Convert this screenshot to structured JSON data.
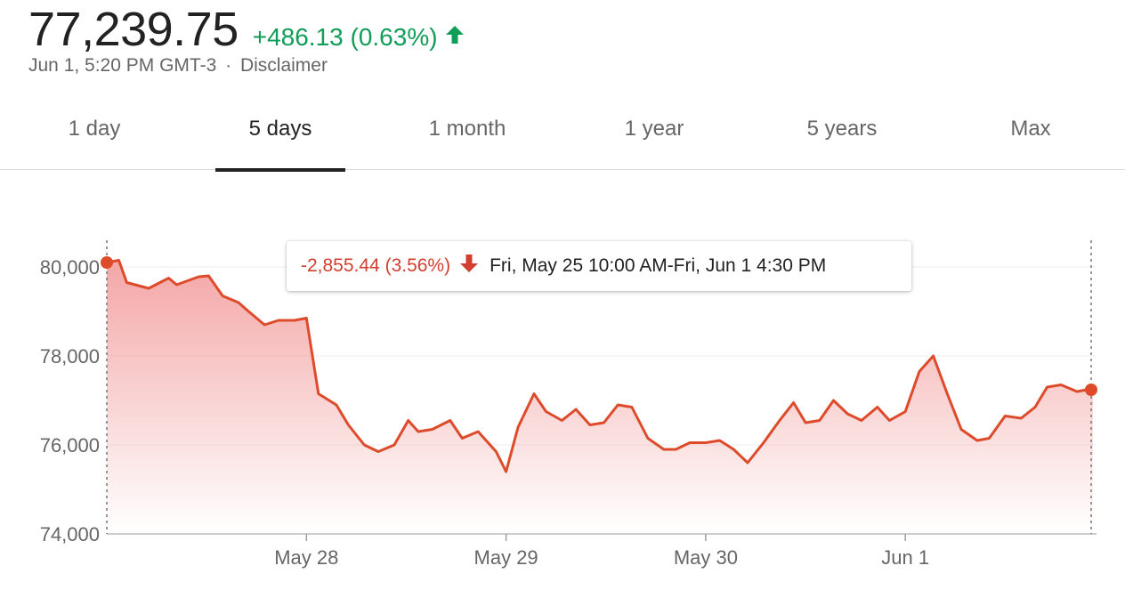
{
  "quote": {
    "price": "77,239.75",
    "change": "+486.13 (0.63%)",
    "timestamp": "Jun 1, 5:20 PM GMT-3",
    "separator": "·",
    "disclaimer": "Disclaimer",
    "change_color": "#0f9d58",
    "change_icon": "arrow-up-icon"
  },
  "tabs": [
    {
      "label": "1 day",
      "active": false
    },
    {
      "label": "5 days",
      "active": true
    },
    {
      "label": "1 month",
      "active": false
    },
    {
      "label": "1 year",
      "active": false
    },
    {
      "label": "5 years",
      "active": false
    },
    {
      "label": "Max",
      "active": false
    }
  ],
  "tooltip": {
    "change": "-2,855.44 (3.56%)",
    "range": "Fri, May 25 10:00 AM-Fri, Jun 1 4:30 PM",
    "change_color": "#d23f31",
    "change_icon": "arrow-down-icon"
  },
  "chart_data": {
    "type": "area",
    "title": "",
    "xlabel": "",
    "ylabel": "",
    "line_color": "#dd4b2b",
    "fill_color": "#f4a6a6",
    "ylim": [
      74000,
      80000
    ],
    "yticks": [
      74000,
      76000,
      78000,
      80000
    ],
    "ytick_labels": [
      "74,000",
      "76,000",
      "78,000",
      "80,000"
    ],
    "xlim": [
      0,
      5
    ],
    "xticks": [
      1,
      2,
      3,
      4
    ],
    "xtick_labels": [
      "May 28",
      "May 29",
      "May 30",
      "Jun 1"
    ],
    "grid": true,
    "series": [
      {
        "values": [
          [
            0.0,
            80100
          ],
          [
            0.06,
            80150
          ],
          [
            0.1,
            79650
          ],
          [
            0.21,
            79520
          ],
          [
            0.31,
            79750
          ],
          [
            0.35,
            79600
          ],
          [
            0.46,
            79780
          ],
          [
            0.51,
            79800
          ],
          [
            0.58,
            79350
          ],
          [
            0.66,
            79200
          ],
          [
            0.71,
            79000
          ],
          [
            0.79,
            78700
          ],
          [
            0.86,
            78800
          ],
          [
            0.94,
            78800
          ],
          [
            1.0,
            78850
          ],
          [
            1.06,
            77150
          ],
          [
            1.15,
            76900
          ],
          [
            1.21,
            76450
          ],
          [
            1.29,
            76000
          ],
          [
            1.36,
            75850
          ],
          [
            1.44,
            76000
          ],
          [
            1.51,
            76550
          ],
          [
            1.56,
            76300
          ],
          [
            1.63,
            76350
          ],
          [
            1.72,
            76550
          ],
          [
            1.78,
            76150
          ],
          [
            1.86,
            76300
          ],
          [
            1.95,
            75850
          ],
          [
            2.0,
            75400
          ],
          [
            2.06,
            76400
          ],
          [
            2.14,
            77150
          ],
          [
            2.2,
            76750
          ],
          [
            2.28,
            76550
          ],
          [
            2.35,
            76800
          ],
          [
            2.42,
            76450
          ],
          [
            2.49,
            76500
          ],
          [
            2.56,
            76900
          ],
          [
            2.63,
            76850
          ],
          [
            2.71,
            76150
          ],
          [
            2.79,
            75900
          ],
          [
            2.85,
            75900
          ],
          [
            2.92,
            76050
          ],
          [
            3.0,
            76050
          ],
          [
            3.07,
            76100
          ],
          [
            3.14,
            75900
          ],
          [
            3.21,
            75600
          ],
          [
            3.29,
            76050
          ],
          [
            3.37,
            76550
          ],
          [
            3.44,
            76950
          ],
          [
            3.5,
            76500
          ],
          [
            3.57,
            76550
          ],
          [
            3.64,
            77000
          ],
          [
            3.71,
            76700
          ],
          [
            3.78,
            76550
          ],
          [
            3.86,
            76850
          ],
          [
            3.92,
            76550
          ],
          [
            4.0,
            76750
          ],
          [
            4.07,
            77650
          ],
          [
            4.14,
            78000
          ],
          [
            4.21,
            77150
          ],
          [
            4.28,
            76350
          ],
          [
            4.36,
            76100
          ],
          [
            4.42,
            76150
          ],
          [
            4.5,
            76650
          ],
          [
            4.58,
            76600
          ],
          [
            4.65,
            76850
          ],
          [
            4.71,
            77300
          ],
          [
            4.78,
            77350
          ],
          [
            4.86,
            77200
          ],
          [
            4.92,
            77250
          ],
          [
            4.94,
            77240
          ]
        ]
      }
    ]
  }
}
